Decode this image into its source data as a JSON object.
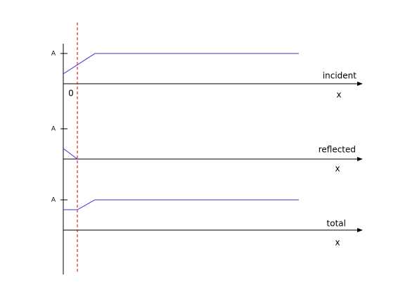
{
  "origin_label": "0",
  "panels": [
    {
      "amplitude_label": "A",
      "wave_label": "incident",
      "axis_label": "x"
    },
    {
      "amplitude_label": "A",
      "wave_label": "reflected",
      "axis_label": "x"
    },
    {
      "amplitude_label": "A",
      "wave_label": "total",
      "axis_label": "x"
    }
  ]
}
